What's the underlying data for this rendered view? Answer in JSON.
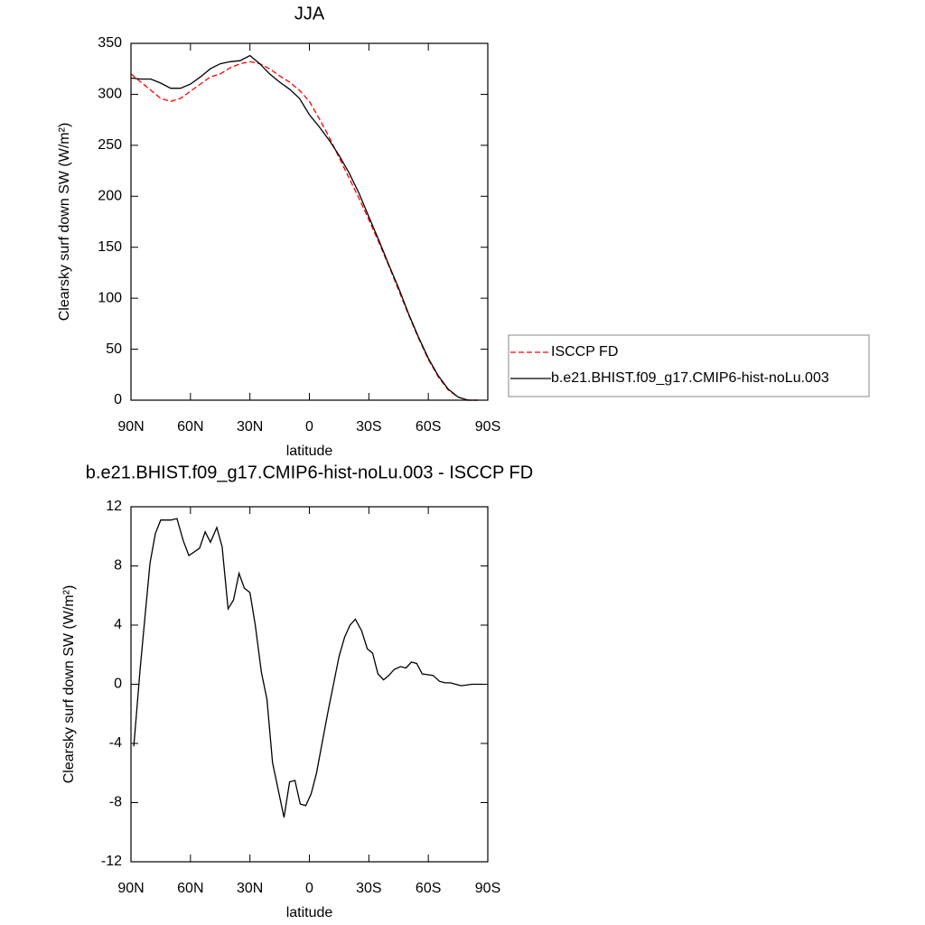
{
  "chart_data": [
    {
      "type": "line",
      "title": "JJA",
      "x_label": "latitude",
      "y_label": "Clearsky surf down SW (W/m²)",
      "xlim": [
        90,
        -90
      ],
      "xticks": [
        {
          "value": 90,
          "label": "90N"
        },
        {
          "value": 60,
          "label": "60N"
        },
        {
          "value": 30,
          "label": "30N"
        },
        0,
        {
          "value": -30,
          "label": "30S"
        },
        {
          "value": -60,
          "label": "60S"
        },
        {
          "value": -90,
          "label": "90S"
        }
      ],
      "ylim": [
        0,
        350
      ],
      "yticks": [
        0,
        50,
        100,
        150,
        200,
        250,
        300,
        350
      ],
      "legend": "right",
      "x": [
        90,
        85,
        80,
        75,
        70,
        65,
        60,
        55,
        50,
        45,
        40,
        35,
        30,
        25,
        20,
        15,
        10,
        5,
        0,
        -5,
        -10,
        -15,
        -20,
        -25,
        -30,
        -35,
        -40,
        -45,
        -50,
        -55,
        -60,
        -65,
        -70,
        -75,
        -80,
        -85
      ],
      "series": [
        {
          "name": "ISCCP FD",
          "color": "#ff0000",
          "dashed": true,
          "values": [
            320,
            312,
            304,
            296,
            293,
            296,
            303,
            310,
            317,
            320,
            326,
            330,
            332,
            330,
            325,
            318,
            312,
            304,
            293,
            276,
            258,
            238,
            218,
            198,
            177,
            155,
            132,
            108,
            84,
            61,
            40,
            23,
            10,
            3,
            0,
            0
          ]
        },
        {
          "name": "b.e21.BHIST.f09_g17.CMIP6-hist-noLu.003",
          "color": "#000000",
          "dashed": false,
          "values": [
            316,
            315,
            315,
            311,
            306,
            306,
            310,
            317,
            325,
            330,
            332,
            333,
            338,
            330,
            320,
            312,
            305,
            296,
            280,
            268,
            255,
            240,
            223,
            203,
            180,
            157,
            133,
            110,
            85,
            62,
            41,
            24,
            11,
            3,
            0,
            0
          ]
        }
      ]
    },
    {
      "type": "line",
      "title": "b.e21.BHIST.f09_g17.CMIP6-hist-noLu.003 - ISCCP FD",
      "x_label": "latitude",
      "y_label": "Clearsky surf down SW (W/m²)",
      "xlim": [
        90,
        -90
      ],
      "xticks": [
        {
          "value": 90,
          "label": "90N"
        },
        {
          "value": 60,
          "label": "60N"
        },
        {
          "value": 30,
          "label": "30N"
        },
        0,
        {
          "value": -30,
          "label": "30S"
        },
        {
          "value": -60,
          "label": "60S"
        },
        {
          "value": -90,
          "label": "90S"
        }
      ],
      "ylim": [
        -12,
        12
      ],
      "yticks": [
        -12,
        -8,
        -4,
        0,
        4,
        8,
        12
      ],
      "x": [
        88.6,
        85.4,
        83,
        80.4,
        77.7,
        75,
        70,
        66.8,
        63.6,
        60.8,
        55.4,
        52.6,
        49.9,
        46.7,
        44,
        41,
        38.3,
        35.5,
        32.8,
        30,
        27.3,
        24.2,
        21.4,
        18.6,
        12.8,
        10,
        7.3,
        4.6,
        1.8,
        -0.9,
        -3.6,
        -6.8,
        -9.6,
        -12.3,
        -15,
        -17.8,
        -20.5,
        -23.2,
        -26.4,
        -29.2,
        -31.9,
        -34.6,
        -37.4,
        -40.1,
        -42.8,
        -46,
        -48.7,
        -51.5,
        -54.2,
        -56.9,
        -62.4,
        -65.6,
        -68.4,
        -71.1,
        -76.6,
        -82,
        -87.5
      ],
      "series": [
        {
          "color": "#000000",
          "dashed": false,
          "values": [
            -4.2,
            1.0,
            4.5,
            8.2,
            10.2,
            11.1,
            11.1,
            11.2,
            9.7,
            8.7,
            9.2,
            10.3,
            9.6,
            10.6,
            9.3,
            5.1,
            5.7,
            7.5,
            6.5,
            6.2,
            4.0,
            0.8,
            -1.0,
            -5.3,
            -9.0,
            -6.6,
            -6.5,
            -8.1,
            -8.2,
            -7.4,
            -6.0,
            -3.7,
            -1.7,
            0.1,
            1.9,
            3.2,
            4.0,
            4.4,
            3.6,
            2.4,
            2.1,
            0.7,
            0.3,
            0.6,
            1.0,
            1.2,
            1.1,
            1.5,
            1.4,
            0.7,
            0.6,
            0.2,
            0.1,
            0.1,
            -0.1,
            0.0,
            0.0
          ]
        }
      ]
    }
  ]
}
